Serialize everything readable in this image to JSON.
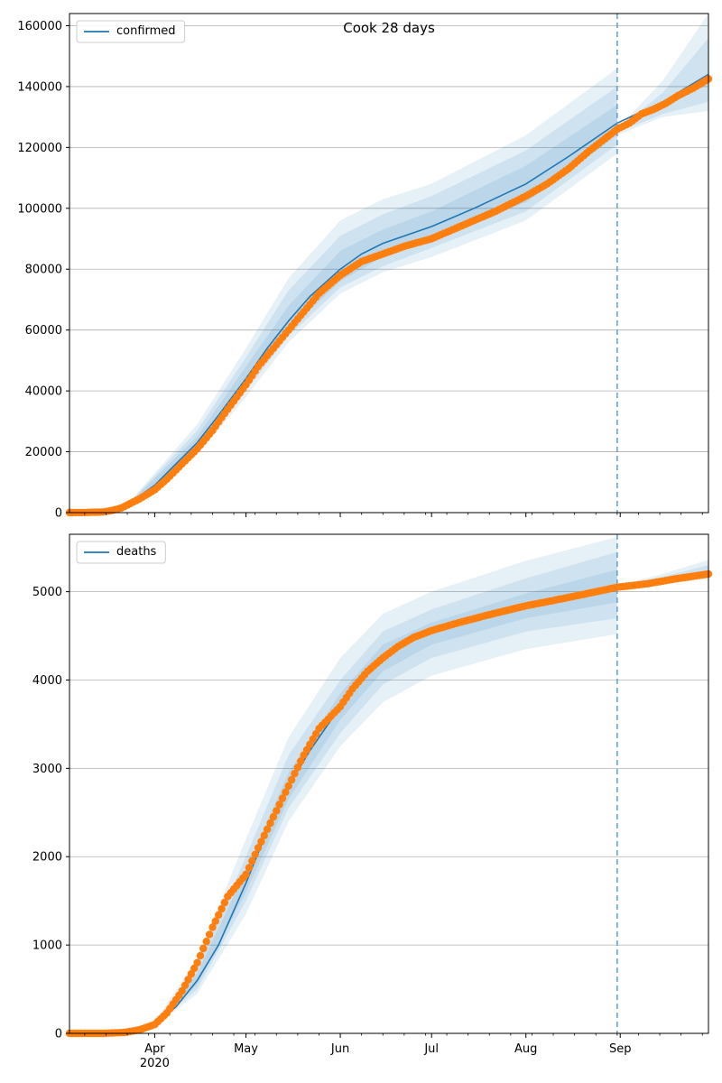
{
  "title": "Cook 28 days",
  "colors": {
    "model": "#1f77b4",
    "observed": "#ff7f0e",
    "band": "#1f77b4",
    "cutoff": "#5a9fd4",
    "grid": "#b0b0b0"
  },
  "x_axis": {
    "start": "2020-03-04",
    "end": "2020-09-30",
    "month_ticks": [
      {
        "date": "2020-04-01",
        "label": "Apr",
        "sublabel": "2020"
      },
      {
        "date": "2020-05-01",
        "label": "May",
        "sublabel": ""
      },
      {
        "date": "2020-06-01",
        "label": "Jun",
        "sublabel": ""
      },
      {
        "date": "2020-07-01",
        "label": "Jul",
        "sublabel": ""
      },
      {
        "date": "2020-08-01",
        "label": "Aug",
        "sublabel": ""
      },
      {
        "date": "2020-09-01",
        "label": "Sep",
        "sublabel": ""
      }
    ],
    "forecast_cutoff": "2020-08-31"
  },
  "chart_data": [
    {
      "type": "line",
      "legend": "confirmed",
      "legend_position": "top-left",
      "grid": true,
      "ylim": [
        0,
        164000
      ],
      "yticks": [
        "0",
        "20000",
        "40000",
        "60000",
        "80000",
        "100000",
        "120000",
        "140000",
        "160000"
      ],
      "ytick_values": [
        0,
        20000,
        40000,
        60000,
        80000,
        100000,
        120000,
        140000,
        160000
      ],
      "model": [
        [
          "2020-03-04",
          0
        ],
        [
          "2020-03-15",
          300
        ],
        [
          "2020-03-20",
          1500
        ],
        [
          "2020-03-25",
          4000
        ],
        [
          "2020-04-01",
          9000
        ],
        [
          "2020-04-08",
          16000
        ],
        [
          "2020-04-15",
          23000
        ],
        [
          "2020-04-22",
          32000
        ],
        [
          "2020-05-01",
          44000
        ],
        [
          "2020-05-08",
          54000
        ],
        [
          "2020-05-15",
          63000
        ],
        [
          "2020-05-22",
          71000
        ],
        [
          "2020-06-01",
          80000
        ],
        [
          "2020-06-08",
          85000
        ],
        [
          "2020-06-15",
          88500
        ],
        [
          "2020-07-01",
          94000
        ],
        [
          "2020-07-15",
          100000
        ],
        [
          "2020-08-01",
          108000
        ],
        [
          "2020-08-15",
          117000
        ],
        [
          "2020-08-31",
          128000
        ],
        [
          "2020-09-15",
          135000
        ],
        [
          "2020-09-30",
          144000
        ]
      ],
      "bands": [
        {
          "lower": [
            [
              "2020-03-25",
              3000
            ],
            [
              "2020-04-15",
              19000
            ],
            [
              "2020-05-01",
              38000
            ],
            [
              "2020-05-15",
              56000
            ],
            [
              "2020-06-01",
              72000
            ],
            [
              "2020-06-15",
              79000
            ],
            [
              "2020-07-01",
              84000
            ],
            [
              "2020-08-01",
              96000
            ],
            [
              "2020-08-31",
              118000
            ]
          ],
          "upper": [
            [
              "2020-03-25",
              5000
            ],
            [
              "2020-04-15",
              29000
            ],
            [
              "2020-05-01",
              54000
            ],
            [
              "2020-05-15",
              77000
            ],
            [
              "2020-06-01",
              96000
            ],
            [
              "2020-06-15",
              103000
            ],
            [
              "2020-07-01",
              108000
            ],
            [
              "2020-08-01",
              124000
            ],
            [
              "2020-08-31",
              146000
            ]
          ]
        },
        {
          "lower": [
            [
              "2020-03-25",
              3400
            ],
            [
              "2020-04-15",
              20000
            ],
            [
              "2020-05-01",
              40000
            ],
            [
              "2020-05-15",
              58000
            ],
            [
              "2020-06-01",
              74000
            ],
            [
              "2020-06-15",
              81000
            ],
            [
              "2020-07-01",
              87000
            ],
            [
              "2020-08-01",
              99000
            ],
            [
              "2020-08-31",
              121000
            ]
          ],
          "upper": [
            [
              "2020-03-25",
              4700
            ],
            [
              "2020-04-15",
              27000
            ],
            [
              "2020-05-01",
              51000
            ],
            [
              "2020-05-15",
              73000
            ],
            [
              "2020-06-01",
              91000
            ],
            [
              "2020-06-15",
              98000
            ],
            [
              "2020-07-01",
              104000
            ],
            [
              "2020-08-01",
              119000
            ],
            [
              "2020-08-31",
              140000
            ]
          ]
        },
        {
          "lower": [
            [
              "2020-03-25",
              3700
            ],
            [
              "2020-04-15",
              21000
            ],
            [
              "2020-05-01",
              41500
            ],
            [
              "2020-05-15",
              60000
            ],
            [
              "2020-06-01",
              76000
            ],
            [
              "2020-06-15",
              84000
            ],
            [
              "2020-07-01",
              90000
            ],
            [
              "2020-08-01",
              102000
            ],
            [
              "2020-08-31",
              124000
            ]
          ],
          "upper": [
            [
              "2020-03-25",
              4400
            ],
            [
              "2020-04-15",
              25000
            ],
            [
              "2020-05-01",
              48000
            ],
            [
              "2020-05-15",
              68000
            ],
            [
              "2020-06-01",
              86000
            ],
            [
              "2020-06-15",
              93000
            ],
            [
              "2020-07-01",
              99000
            ],
            [
              "2020-08-01",
              114000
            ],
            [
              "2020-08-31",
              134000
            ]
          ]
        },
        {
          "lower": [
            [
              "2020-08-31",
              124000
            ],
            [
              "2020-09-15",
              130000
            ],
            [
              "2020-09-30",
              132000
            ]
          ],
          "upper": [
            [
              "2020-08-31",
              126000
            ],
            [
              "2020-09-15",
              142000
            ],
            [
              "2020-09-30",
              164000
            ]
          ]
        },
        {
          "lower": [
            [
              "2020-08-31",
              125000
            ],
            [
              "2020-09-15",
              131000
            ],
            [
              "2020-09-30",
              135000
            ]
          ],
          "upper": [
            [
              "2020-08-31",
              126000
            ],
            [
              "2020-09-15",
              138000
            ],
            [
              "2020-09-30",
              156000
            ]
          ]
        }
      ],
      "observed": [
        [
          "2020-03-04",
          0
        ],
        [
          "2020-03-10",
          50
        ],
        [
          "2020-03-15",
          200
        ],
        [
          "2020-03-18",
          700
        ],
        [
          "2020-03-21",
          1500
        ],
        [
          "2020-03-24",
          3000
        ],
        [
          "2020-03-27",
          4500
        ],
        [
          "2020-04-01",
          7500
        ],
        [
          "2020-04-05",
          11000
        ],
        [
          "2020-04-10",
          16000
        ],
        [
          "2020-04-15",
          21000
        ],
        [
          "2020-04-20",
          27000
        ],
        [
          "2020-04-25",
          34000
        ],
        [
          "2020-05-01",
          42000
        ],
        [
          "2020-05-05",
          48000
        ],
        [
          "2020-05-10",
          54000
        ],
        [
          "2020-05-15",
          60000
        ],
        [
          "2020-05-20",
          66000
        ],
        [
          "2020-05-25",
          72000
        ],
        [
          "2020-06-01",
          78000
        ],
        [
          "2020-06-08",
          82500
        ],
        [
          "2020-06-15",
          85000
        ],
        [
          "2020-06-22",
          87500
        ],
        [
          "2020-07-01",
          90000
        ],
        [
          "2020-07-08",
          93000
        ],
        [
          "2020-07-15",
          96000
        ],
        [
          "2020-07-22",
          99000
        ],
        [
          "2020-08-01",
          104000
        ],
        [
          "2020-08-08",
          108000
        ],
        [
          "2020-08-15",
          113000
        ],
        [
          "2020-08-22",
          119000
        ],
        [
          "2020-08-31",
          126000
        ],
        [
          "2020-09-04",
          128000
        ],
        [
          "2020-09-08",
          131000
        ],
        [
          "2020-09-12",
          132500
        ],
        [
          "2020-09-16",
          134500
        ],
        [
          "2020-09-20",
          137000
        ],
        [
          "2020-09-25",
          139500
        ],
        [
          "2020-09-30",
          142500
        ]
      ]
    },
    {
      "type": "line",
      "legend": "deaths",
      "legend_position": "top-left",
      "grid": true,
      "ylim": [
        0,
        5650
      ],
      "yticks": [
        "0",
        "1000",
        "2000",
        "3000",
        "4000",
        "5000"
      ],
      "ytick_values": [
        0,
        1000,
        2000,
        3000,
        4000,
        5000
      ],
      "model": [
        [
          "2020-03-04",
          0
        ],
        [
          "2020-03-20",
          10
        ],
        [
          "2020-03-28",
          50
        ],
        [
          "2020-04-01",
          100
        ],
        [
          "2020-04-08",
          300
        ],
        [
          "2020-04-15",
          600
        ],
        [
          "2020-04-22",
          1000
        ],
        [
          "2020-05-01",
          1700
        ],
        [
          "2020-05-08",
          2300
        ],
        [
          "2020-05-15",
          2800
        ],
        [
          "2020-05-22",
          3200
        ],
        [
          "2020-06-01",
          3700
        ],
        [
          "2020-06-08",
          4000
        ],
        [
          "2020-06-15",
          4250
        ],
        [
          "2020-06-22",
          4400
        ],
        [
          "2020-07-01",
          4550
        ],
        [
          "2020-07-15",
          4700
        ],
        [
          "2020-08-01",
          4850
        ],
        [
          "2020-08-15",
          4950
        ],
        [
          "2020-08-31",
          5050
        ],
        [
          "2020-09-15",
          5130
        ],
        [
          "2020-09-30",
          5220
        ]
      ],
      "bands": [
        {
          "lower": [
            [
              "2020-04-01",
              80
            ],
            [
              "2020-04-15",
              450
            ],
            [
              "2020-05-01",
              1350
            ],
            [
              "2020-05-15",
              2400
            ],
            [
              "2020-06-01",
              3250
            ],
            [
              "2020-06-15",
              3750
            ],
            [
              "2020-07-01",
              4050
            ],
            [
              "2020-08-01",
              4350
            ],
            [
              "2020-08-31",
              4520
            ]
          ],
          "upper": [
            [
              "2020-04-01",
              130
            ],
            [
              "2020-04-15",
              850
            ],
            [
              "2020-05-01",
              2200
            ],
            [
              "2020-05-15",
              3350
            ],
            [
              "2020-06-01",
              4250
            ],
            [
              "2020-06-15",
              4750
            ],
            [
              "2020-07-01",
              5000
            ],
            [
              "2020-08-01",
              5350
            ],
            [
              "2020-08-31",
              5620
            ]
          ]
        },
        {
          "lower": [
            [
              "2020-04-01",
              90
            ],
            [
              "2020-04-15",
              500
            ],
            [
              "2020-05-01",
              1500
            ],
            [
              "2020-05-15",
              2550
            ],
            [
              "2020-06-01",
              3400
            ],
            [
              "2020-06-15",
              3950
            ],
            [
              "2020-07-01",
              4250
            ],
            [
              "2020-08-01",
              4550
            ],
            [
              "2020-08-31",
              4700
            ]
          ],
          "upper": [
            [
              "2020-04-01",
              120
            ],
            [
              "2020-04-15",
              750
            ],
            [
              "2020-05-01",
              2000
            ],
            [
              "2020-05-15",
              3150
            ],
            [
              "2020-06-01",
              4000
            ],
            [
              "2020-06-15",
              4550
            ],
            [
              "2020-07-01",
              4800
            ],
            [
              "2020-08-01",
              5150
            ],
            [
              "2020-08-31",
              5450
            ]
          ]
        },
        {
          "lower": [
            [
              "2020-04-01",
              95
            ],
            [
              "2020-04-15",
              550
            ],
            [
              "2020-05-01",
              1600
            ],
            [
              "2020-05-15",
              2650
            ],
            [
              "2020-06-01",
              3550
            ],
            [
              "2020-06-15",
              4100
            ],
            [
              "2020-07-01",
              4400
            ],
            [
              "2020-08-01",
              4700
            ],
            [
              "2020-08-31",
              4880
            ]
          ],
          "upper": [
            [
              "2020-04-01",
              110
            ],
            [
              "2020-04-15",
              680
            ],
            [
              "2020-05-01",
              1850
            ],
            [
              "2020-05-15",
              2950
            ],
            [
              "2020-06-01",
              3850
            ],
            [
              "2020-06-15",
              4400
            ],
            [
              "2020-07-01",
              4650
            ],
            [
              "2020-08-01",
              4980
            ],
            [
              "2020-08-31",
              5250
            ]
          ]
        },
        {
          "lower": [
            [
              "2020-08-31",
              5030
            ],
            [
              "2020-09-15",
              5080
            ],
            [
              "2020-09-30",
              5150
            ]
          ],
          "upper": [
            [
              "2020-08-31",
              5070
            ],
            [
              "2020-09-15",
              5200
            ],
            [
              "2020-09-30",
              5360
            ]
          ]
        },
        {
          "lower": [
            [
              "2020-08-31",
              5040
            ],
            [
              "2020-09-15",
              5100
            ],
            [
              "2020-09-30",
              5180
            ]
          ],
          "upper": [
            [
              "2020-08-31",
              5060
            ],
            [
              "2020-09-15",
              5170
            ],
            [
              "2020-09-30",
              5300
            ]
          ]
        }
      ],
      "observed": [
        [
          "2020-03-04",
          0
        ],
        [
          "2020-03-15",
          0
        ],
        [
          "2020-03-22",
          10
        ],
        [
          "2020-03-27",
          40
        ],
        [
          "2020-04-01",
          100
        ],
        [
          "2020-04-05",
          230
        ],
        [
          "2020-04-10",
          480
        ],
        [
          "2020-04-15",
          800
        ],
        [
          "2020-04-20",
          1200
        ],
        [
          "2020-04-25",
          1550
        ],
        [
          "2020-05-01",
          1800
        ],
        [
          "2020-05-05",
          2100
        ],
        [
          "2020-05-10",
          2450
        ],
        [
          "2020-05-15",
          2800
        ],
        [
          "2020-05-20",
          3150
        ],
        [
          "2020-05-25",
          3450
        ],
        [
          "2020-06-01",
          3700
        ],
        [
          "2020-06-05",
          3900
        ],
        [
          "2020-06-10",
          4100
        ],
        [
          "2020-06-15",
          4250
        ],
        [
          "2020-06-20",
          4380
        ],
        [
          "2020-06-25",
          4480
        ],
        [
          "2020-07-01",
          4560
        ],
        [
          "2020-07-10",
          4650
        ],
        [
          "2020-07-20",
          4740
        ],
        [
          "2020-08-01",
          4840
        ],
        [
          "2020-08-10",
          4900
        ],
        [
          "2020-08-20",
          4970
        ],
        [
          "2020-08-31",
          5050
        ],
        [
          "2020-09-10",
          5090
        ],
        [
          "2020-09-20",
          5150
        ],
        [
          "2020-09-30",
          5200
        ]
      ]
    }
  ]
}
